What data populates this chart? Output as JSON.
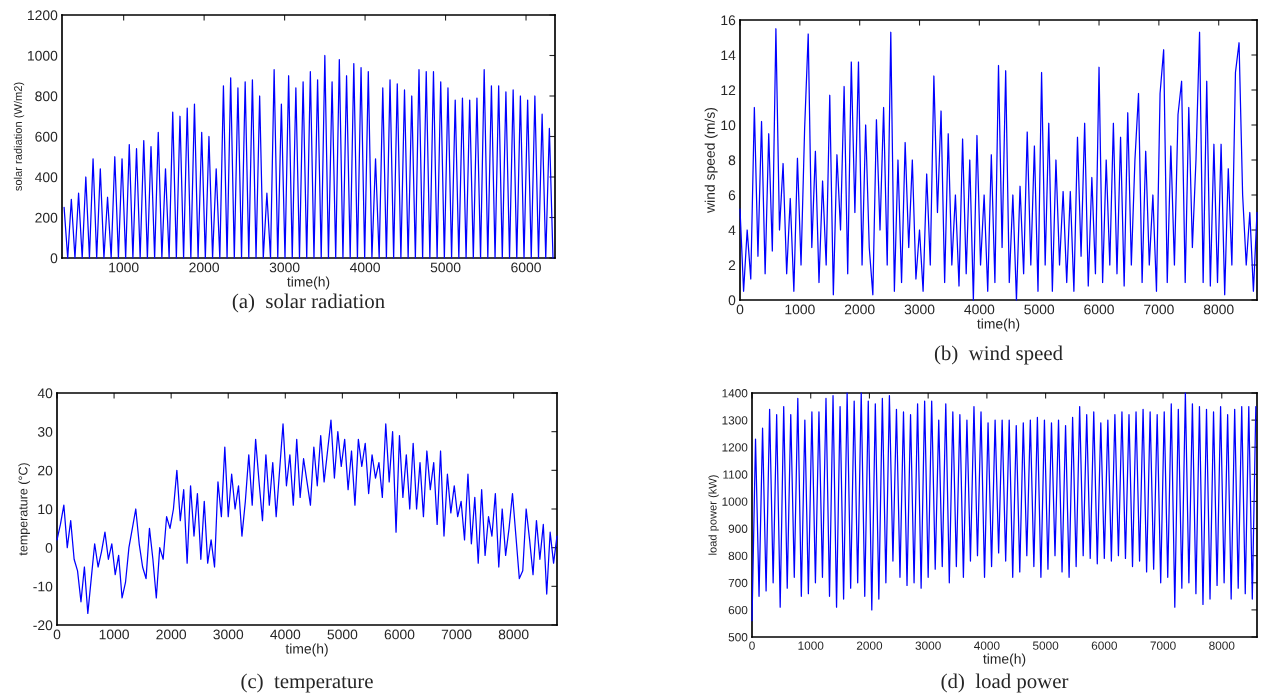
{
  "chart_data": [
    {
      "type": "line",
      "xlabel": "time(h)",
      "ylabel": "solar radiation (W/m2)",
      "annotations": [
        "(a)  solar radiation"
      ],
      "grid": false,
      "xlim": [
        234,
        6360
      ],
      "ylim": [
        0,
        1200
      ],
      "xticks": [
        1000,
        2000,
        3000,
        4000,
        5000,
        6000
      ],
      "yticks": [
        0,
        200,
        400,
        600,
        800,
        1000,
        1200
      ],
      "series": [
        {
          "color": "#0000ff",
          "x": [
            260,
            305,
            350,
            395,
            440,
            485,
            530,
            575,
            620,
            665,
            710,
            755,
            800,
            845,
            890,
            935,
            980,
            1025,
            1070,
            1115,
            1160,
            1205,
            1250,
            1295,
            1340,
            1385,
            1430,
            1475,
            1520,
            1565,
            1610,
            1655,
            1700,
            1745,
            1790,
            1835,
            1880,
            1925,
            1970,
            2015,
            2060,
            2105,
            2150,
            2195,
            2240,
            2285,
            2330,
            2375,
            2420,
            2465,
            2510,
            2555,
            2600,
            2645,
            2690,
            2735,
            2780,
            2825,
            2870,
            2915,
            2960,
            3005,
            3050,
            3095,
            3140,
            3185,
            3230,
            3275,
            3320,
            3365,
            3410,
            3455,
            3500,
            3545,
            3590,
            3635,
            3680,
            3725,
            3770,
            3815,
            3860,
            3905,
            3950,
            3995,
            4040,
            4085,
            4130,
            4175,
            4220,
            4265,
            4310,
            4355,
            4400,
            4445,
            4490,
            4535,
            4580,
            4625,
            4670,
            4715,
            4760,
            4805,
            4850,
            4895,
            4940,
            4985,
            5030,
            5075,
            5120,
            5165,
            5210,
            5255,
            5300,
            5345,
            5390,
            5435,
            5480,
            5525,
            5570,
            5615,
            5660,
            5705,
            5750,
            5795,
            5840,
            5885,
            5930,
            5975,
            6020,
            6065,
            6110,
            6155,
            6200,
            6245,
            6290,
            6335
          ],
          "values": [
            250,
            0,
            290,
            0,
            320,
            0,
            400,
            0,
            490,
            0,
            440,
            0,
            300,
            0,
            500,
            0,
            490,
            0,
            560,
            0,
            540,
            0,
            580,
            0,
            550,
            0,
            620,
            0,
            440,
            0,
            720,
            0,
            700,
            0,
            740,
            0,
            760,
            0,
            620,
            0,
            600,
            0,
            440,
            0,
            850,
            0,
            890,
            0,
            840,
            0,
            870,
            0,
            880,
            0,
            800,
            0,
            320,
            0,
            930,
            0,
            760,
            0,
            900,
            0,
            840,
            0,
            870,
            0,
            920,
            0,
            880,
            0,
            1000,
            0,
            870,
            0,
            980,
            0,
            900,
            0,
            960,
            0,
            940,
            0,
            920,
            0,
            490,
            0,
            840,
            0,
            880,
            0,
            860,
            0,
            830,
            0,
            800,
            0,
            930,
            0,
            920,
            0,
            920,
            0,
            870,
            0,
            840,
            0,
            780,
            0,
            790,
            0,
            780,
            0,
            790,
            0,
            930,
            0,
            850,
            0,
            850,
            0,
            820,
            0,
            830,
            0,
            800,
            0,
            780,
            0,
            800,
            0,
            710,
            0,
            640,
            0
          ]
        }
      ]
    },
    {
      "type": "line",
      "xlabel": "time(h)",
      "ylabel": "wind speed (m/s)",
      "annotations": [
        "(b)  wind speed"
      ],
      "grid": false,
      "xlim": [
        0,
        8640
      ],
      "ylim": [
        0,
        16
      ],
      "xticks": [
        0,
        1000,
        2000,
        3000,
        4000,
        5000,
        6000,
        7000,
        8000
      ],
      "yticks": [
        0,
        2,
        4,
        6,
        8,
        10,
        12,
        14,
        16
      ],
      "series": [
        {
          "color": "#0000ff",
          "x": [
            0,
            60,
            120,
            180,
            240,
            300,
            360,
            420,
            480,
            540,
            600,
            660,
            720,
            780,
            840,
            900,
            960,
            1020,
            1080,
            1140,
            1200,
            1260,
            1320,
            1380,
            1440,
            1500,
            1560,
            1620,
            1680,
            1740,
            1800,
            1860,
            1920,
            1980,
            2040,
            2100,
            2160,
            2220,
            2280,
            2340,
            2400,
            2460,
            2520,
            2580,
            2640,
            2700,
            2760,
            2820,
            2880,
            2940,
            3000,
            3060,
            3120,
            3180,
            3240,
            3300,
            3360,
            3420,
            3480,
            3540,
            3600,
            3660,
            3720,
            3780,
            3840,
            3900,
            3960,
            4020,
            4080,
            4140,
            4200,
            4260,
            4320,
            4380,
            4440,
            4500,
            4560,
            4620,
            4680,
            4740,
            4800,
            4860,
            4920,
            4980,
            5040,
            5100,
            5160,
            5220,
            5280,
            5340,
            5400,
            5460,
            5520,
            5580,
            5640,
            5700,
            5760,
            5820,
            5880,
            5940,
            6000,
            6060,
            6120,
            6180,
            6240,
            6300,
            6360,
            6420,
            6480,
            6540,
            6600,
            6660,
            6720,
            6780,
            6840,
            6900,
            6960,
            7020,
            7080,
            7140,
            7200,
            7260,
            7320,
            7380,
            7440,
            7500,
            7560,
            7620,
            7680,
            7740,
            7800,
            7860,
            7920,
            7980,
            8040,
            8100,
            8160,
            8220,
            8280,
            8340,
            8400,
            8460,
            8520,
            8580,
            8640
          ],
          "values": [
            5.2,
            0.5,
            4,
            1.2,
            11,
            2.5,
            10.2,
            1.5,
            9.5,
            2.8,
            15.5,
            4,
            7.8,
            1.5,
            5.8,
            0.5,
            8.1,
            2,
            9.8,
            15.2,
            3,
            8.5,
            1,
            6.8,
            2,
            11.7,
            0.3,
            8.3,
            4,
            12.2,
            1.5,
            13.6,
            5,
            13.6,
            2,
            10,
            3,
            0.3,
            10.3,
            4,
            11,
            2,
            15.3,
            0.5,
            8,
            1,
            9,
            3,
            8,
            1.2,
            4,
            0.5,
            7.2,
            2,
            12.8,
            5,
            10.8,
            1,
            9.5,
            2,
            6,
            0.8,
            9.2,
            1.5,
            8,
            0,
            9.4,
            2,
            6,
            0.5,
            8.3,
            1,
            13.4,
            3,
            13.1,
            1,
            6,
            0,
            6.5,
            1.5,
            9.6,
            2,
            8.8,
            0.5,
            13,
            2,
            10.1,
            0.5,
            8,
            2,
            6.2,
            1,
            6.2,
            0.5,
            9.3,
            2.5,
            10.1,
            0.8,
            7,
            1.5,
            13.3,
            1,
            8,
            2,
            10.1,
            1.5,
            9.3,
            0.8,
            10.7,
            2,
            8,
            11.8,
            1,
            8.5,
            2,
            6,
            0.5,
            11.8,
            14.3,
            1,
            8.8,
            2,
            10.6,
            12.5,
            1,
            11,
            3,
            8,
            15.3,
            1,
            12.5,
            0.8,
            8.9,
            1,
            8.9,
            0.3,
            7.5,
            2,
            13,
            14.7,
            6,
            2,
            5,
            0.5,
            5
          ]
        }
      ]
    },
    {
      "type": "line",
      "xlabel": "time(h)",
      "ylabel": "temperature (°C)",
      "annotations": [
        "(c)  temperature"
      ],
      "grid": false,
      "xlim": [
        0,
        8760
      ],
      "ylim": [
        -20,
        40
      ],
      "xticks": [
        0,
        1000,
        2000,
        3000,
        4000,
        5000,
        6000,
        7000,
        8000
      ],
      "yticks": [
        -20,
        -10,
        0,
        10,
        20,
        30,
        40
      ],
      "series": [
        {
          "color": "#0000ff",
          "x": [
            0,
            60,
            120,
            180,
            240,
            300,
            360,
            420,
            480,
            540,
            600,
            660,
            720,
            780,
            840,
            900,
            960,
            1020,
            1080,
            1140,
            1200,
            1260,
            1320,
            1380,
            1440,
            1500,
            1560,
            1620,
            1680,
            1740,
            1800,
            1860,
            1920,
            1980,
            2040,
            2100,
            2160,
            2220,
            2280,
            2340,
            2400,
            2460,
            2520,
            2580,
            2640,
            2700,
            2760,
            2820,
            2880,
            2940,
            3000,
            3060,
            3120,
            3180,
            3240,
            3300,
            3360,
            3420,
            3480,
            3540,
            3600,
            3660,
            3720,
            3780,
            3840,
            3900,
            3960,
            4020,
            4080,
            4140,
            4200,
            4260,
            4320,
            4380,
            4440,
            4500,
            4560,
            4620,
            4680,
            4740,
            4800,
            4860,
            4920,
            4980,
            5040,
            5100,
            5160,
            5220,
            5280,
            5340,
            5400,
            5460,
            5520,
            5580,
            5640,
            5700,
            5760,
            5820,
            5880,
            5940,
            6000,
            6060,
            6120,
            6180,
            6240,
            6300,
            6360,
            6420,
            6480,
            6540,
            6600,
            6660,
            6720,
            6780,
            6840,
            6900,
            6960,
            7020,
            7080,
            7140,
            7200,
            7260,
            7320,
            7380,
            7440,
            7500,
            7560,
            7620,
            7680,
            7740,
            7800,
            7860,
            7920,
            7980,
            8040,
            8100,
            8160,
            8220,
            8280,
            8340,
            8400,
            8460,
            8520,
            8580,
            8640,
            8700,
            8760
          ],
          "values": [
            2,
            6,
            11,
            0,
            7,
            -3,
            -6,
            -14,
            -5,
            -17,
            -8,
            1,
            -5,
            -1,
            4,
            -3,
            1,
            -7,
            -2,
            -13,
            -9,
            0,
            5,
            10,
            1,
            -5,
            -8,
            5,
            -3,
            -13,
            0,
            -3,
            8,
            5,
            10,
            20,
            7,
            15,
            -4,
            16,
            3,
            14,
            -3,
            12,
            -4,
            2,
            -5,
            17,
            8,
            26,
            8,
            19,
            10,
            16,
            3,
            12,
            24,
            11,
            28,
            17,
            7,
            24,
            11,
            22,
            8,
            20,
            32,
            16,
            24,
            11,
            28,
            13,
            23,
            17,
            11,
            26,
            16,
            29,
            17,
            25,
            33,
            18,
            30,
            21,
            28,
            15,
            25,
            11,
            28,
            21,
            27,
            14,
            24,
            18,
            22,
            13,
            32,
            17,
            30,
            4,
            29,
            13,
            24,
            10,
            27,
            10,
            22,
            8,
            25,
            15,
            22,
            6,
            25,
            3,
            19,
            9,
            16,
            8,
            12,
            2,
            19,
            1,
            13,
            -4,
            15,
            -2,
            8,
            3,
            14,
            -5,
            10,
            -2,
            5,
            14,
            3,
            -8,
            -6,
            10,
            2,
            -7,
            7,
            -3,
            6,
            -12,
            4,
            -4,
            3
          ]
        }
      ]
    },
    {
      "type": "line",
      "xlabel": "time(h)",
      "ylabel": "load power (kW)",
      "annotations": [
        "(d)  load power"
      ],
      "grid": false,
      "xlim": [
        0,
        8600
      ],
      "ylim": [
        500,
        1400
      ],
      "xticks": [
        0,
        1000,
        2000,
        3000,
        4000,
        5000,
        6000,
        7000,
        8000
      ],
      "yticks": [
        500,
        600,
        700,
        800,
        900,
        1000,
        1100,
        1200,
        1300,
        1400
      ],
      "series": [
        {
          "color": "#0000ff",
          "x": [
            0,
            60,
            120,
            180,
            240,
            300,
            360,
            420,
            480,
            540,
            600,
            660,
            720,
            780,
            840,
            900,
            960,
            1020,
            1080,
            1140,
            1200,
            1260,
            1320,
            1380,
            1440,
            1500,
            1560,
            1620,
            1680,
            1740,
            1800,
            1860,
            1920,
            1980,
            2040,
            2100,
            2160,
            2220,
            2280,
            2340,
            2400,
            2460,
            2520,
            2580,
            2640,
            2700,
            2760,
            2820,
            2880,
            2940,
            3000,
            3060,
            3120,
            3180,
            3240,
            3300,
            3360,
            3420,
            3480,
            3540,
            3600,
            3660,
            3720,
            3780,
            3840,
            3900,
            3960,
            4020,
            4080,
            4140,
            4200,
            4260,
            4320,
            4380,
            4440,
            4500,
            4560,
            4620,
            4680,
            4740,
            4800,
            4860,
            4920,
            4980,
            5040,
            5100,
            5160,
            5220,
            5280,
            5340,
            5400,
            5460,
            5520,
            5580,
            5640,
            5700,
            5760,
            5820,
            5880,
            5940,
            6000,
            6060,
            6120,
            6180,
            6240,
            6300,
            6360,
            6420,
            6480,
            6540,
            6600,
            6660,
            6720,
            6780,
            6840,
            6900,
            6960,
            7020,
            7080,
            7140,
            7200,
            7260,
            7320,
            7380,
            7440,
            7500,
            7560,
            7620,
            7680,
            7740,
            7800,
            7860,
            7920,
            7980,
            8040,
            8100,
            8160,
            8220,
            8280,
            8340,
            8400,
            8460,
            8520,
            8580
          ],
          "values": [
            560,
            1230,
            650,
            1270,
            670,
            1340,
            700,
            1320,
            610,
            1350,
            680,
            1320,
            720,
            1380,
            650,
            1300,
            660,
            1330,
            700,
            1330,
            720,
            1380,
            650,
            1390,
            610,
            1350,
            640,
            1400,
            680,
            1370,
            700,
            1400,
            650,
            1370,
            600,
            1360,
            640,
            1380,
            700,
            1390,
            780,
            1340,
            720,
            1330,
            690,
            1320,
            700,
            1360,
            680,
            1370,
            720,
            1370,
            750,
            1300,
            760,
            1360,
            700,
            1330,
            760,
            1320,
            720,
            1300,
            780,
            1350,
            800,
            1330,
            720,
            1290,
            760,
            1300,
            810,
            1300,
            780,
            1300,
            720,
            1280,
            740,
            1290,
            800,
            1300,
            760,
            1310,
            720,
            1300,
            750,
            1290,
            800,
            1300,
            740,
            1280,
            720,
            1310,
            760,
            1350,
            800,
            1320,
            790,
            1330,
            770,
            1290,
            790,
            1300,
            780,
            1320,
            800,
            1330,
            790,
            1320,
            760,
            1330,
            780,
            1340,
            740,
            1330,
            750,
            1320,
            700,
            1330,
            720,
            1360,
            610,
            1340,
            680,
            1400,
            700,
            1360,
            660,
            1350,
            620,
            1340,
            640,
            1330,
            690,
            1350,
            700,
            1320,
            640,
            1340,
            680,
            1350,
            660,
            1350,
            640,
            1350
          ]
        }
      ]
    }
  ]
}
